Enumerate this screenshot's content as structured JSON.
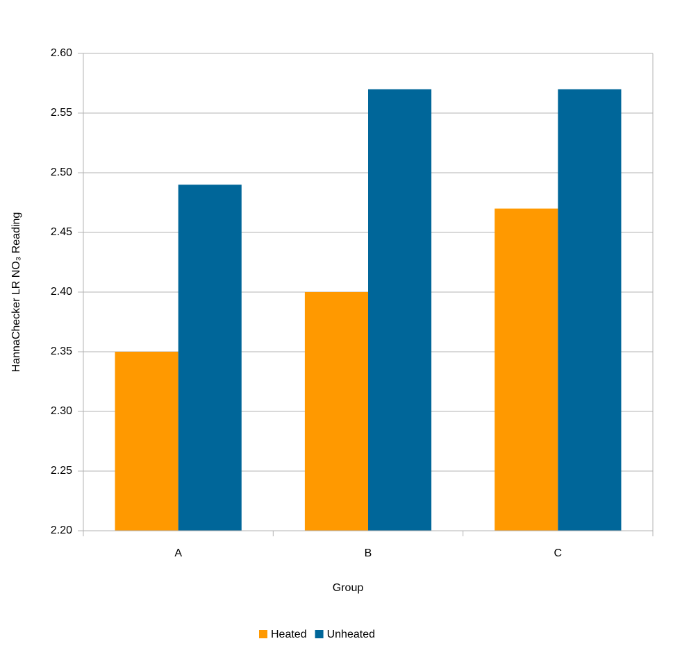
{
  "chart_data": {
    "type": "bar",
    "y_label": "HannaChecker LR NO₃ Reading",
    "x_label": "Group",
    "categories": [
      "A",
      "B",
      "C"
    ],
    "series": [
      {
        "name": "Heated",
        "color": "#ff9900",
        "values": [
          2.35,
          2.4,
          2.47
        ]
      },
      {
        "name": "Unheated",
        "color": "#006699",
        "values": [
          2.49,
          2.57,
          2.57
        ]
      }
    ],
    "ylim": [
      2.2,
      2.6
    ],
    "yticks": [
      {
        "value": 2.2,
        "label": "2.20"
      },
      2.25,
      {
        "value": 2.3,
        "label": "2.30"
      },
      2.35,
      {
        "value": 2.4,
        "label": "2.40"
      },
      2.45,
      {
        "value": 2.5,
        "label": "2.50"
      },
      2.55,
      {
        "value": 2.6,
        "label": "2.60"
      }
    ],
    "grid": true,
    "legend": "bottom"
  }
}
